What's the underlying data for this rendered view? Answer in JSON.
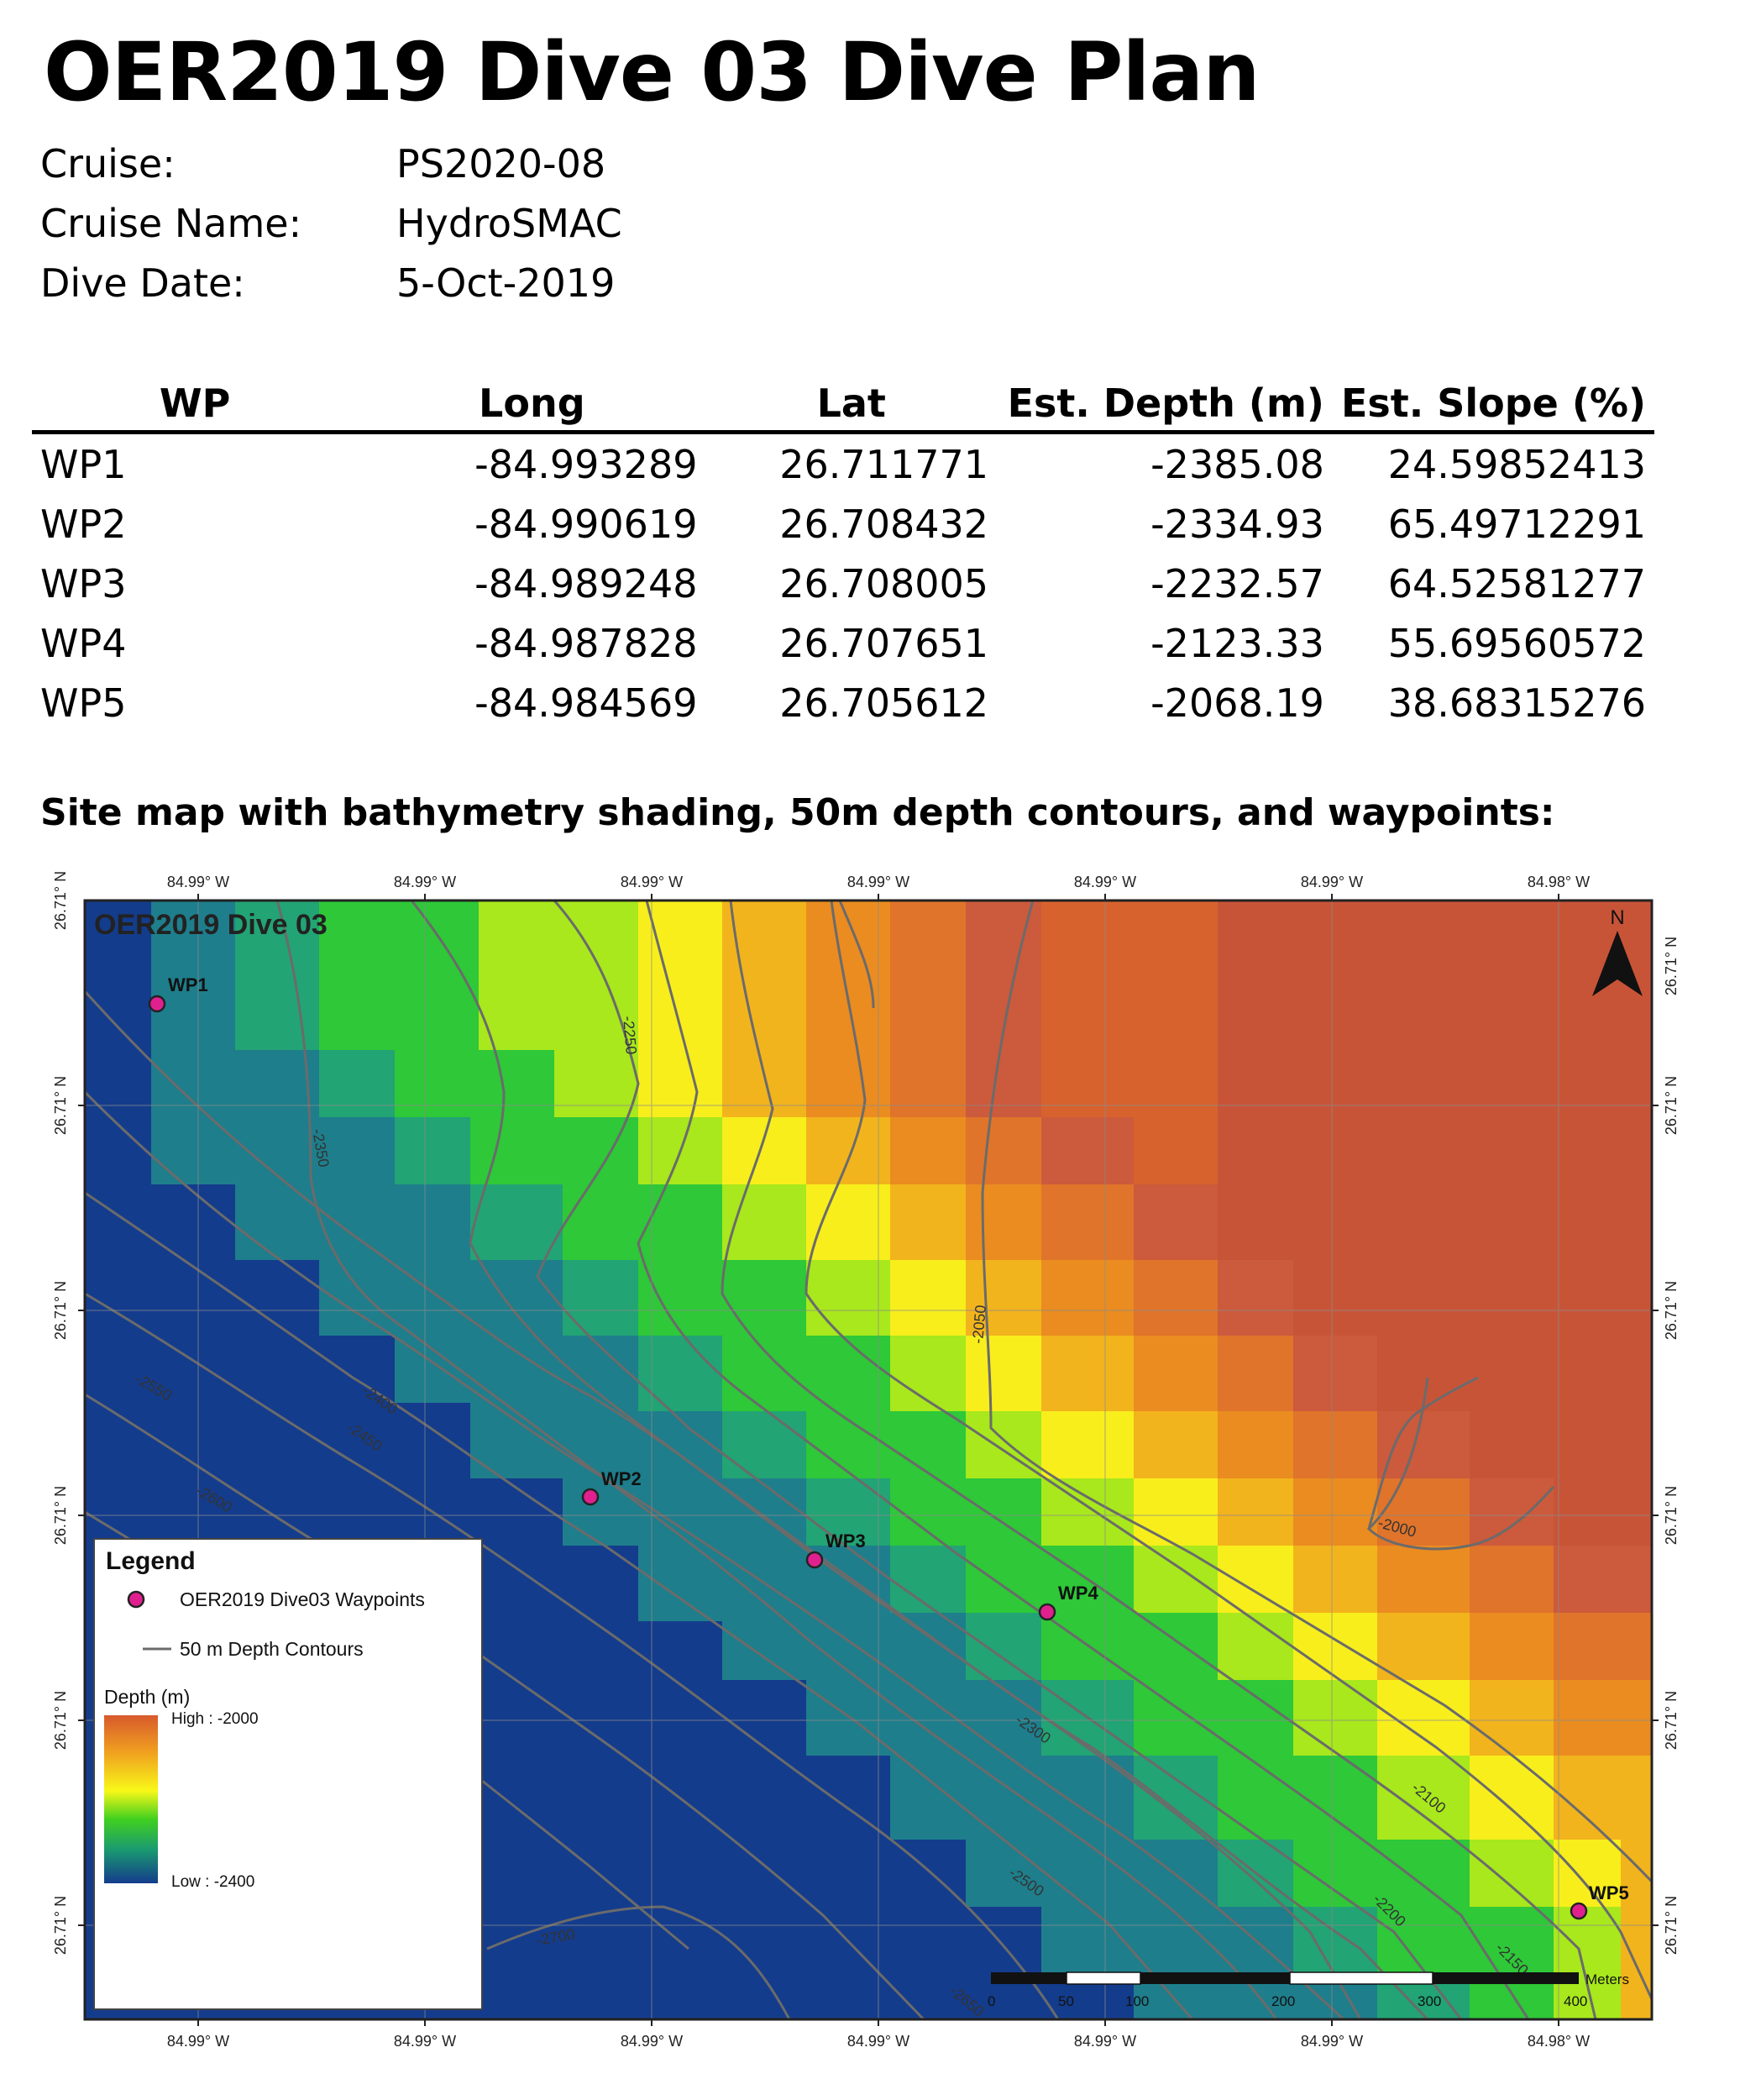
{
  "title": "OER2019 Dive 03 Dive Plan",
  "info": [
    {
      "key": "Cruise:",
      "value": "PS2020-08"
    },
    {
      "key": "Cruise Name:",
      "value": "HydroSMAC"
    },
    {
      "key": "Dive Date:",
      "value": "5-Oct-2019"
    }
  ],
  "table": {
    "headers": [
      "WP",
      "Long",
      "Lat",
      "Est. Depth (m)",
      "Est. Slope (%)"
    ],
    "rows": [
      [
        "WP1",
        "-84.993289",
        "26.711771",
        "-2385.08",
        "24.59852413"
      ],
      [
        "WP2",
        "-84.990619",
        "26.708432",
        "-2334.93",
        "65.49712291"
      ],
      [
        "WP3",
        "-84.989248",
        "26.708005",
        "-2232.57",
        "64.52581277"
      ],
      [
        "WP4",
        "-84.987828",
        "26.707651",
        "-2123.33",
        "55.69560572"
      ],
      [
        "WP5",
        "-84.984569",
        "26.705612",
        "-2068.19",
        "38.68315276"
      ]
    ]
  },
  "map_heading": "Site map with bathymetry shading, 50m depth contours, and waypoints:",
  "map": {
    "map_title": "OER2019 Dive 03",
    "north_label": "N",
    "top_ticks": [
      "84.99° W",
      "84.99° W",
      "84.99° W",
      "84.99° W",
      "84.99° W",
      "84.99° W",
      "84.98° W"
    ],
    "bottom_ticks": [
      "84.99° W",
      "84.99° W",
      "84.99° W",
      "84.99° W",
      "84.99° W",
      "84.99° W",
      "84.98° W"
    ],
    "left_ticks": [
      "26.71° N",
      "26.71° N",
      "26.71° N",
      "26.71° N",
      "26.71° N",
      "26.71° N"
    ],
    "right_ticks": [
      "26.71° N",
      "26.71° N",
      "26.71° N",
      "26.71° N",
      "26.71° N",
      "26.71° N"
    ],
    "waypoint_labels": [
      "WP1",
      "WP2",
      "WP3",
      "WP4",
      "WP5"
    ],
    "waypoint_color": "#e0208f",
    "contour_labels": [
      "-2350",
      "-2250",
      "-2050",
      "-2000",
      "-2550",
      "-2400",
      "-2450",
      "-2600",
      "-2300",
      "-2100",
      "-2500",
      "-2200",
      "-2150",
      "-2700",
      "-2650"
    ],
    "legend": {
      "title": "Legend",
      "waypoints": "OER2019 Dive03 Waypoints",
      "contours": "50 m Depth Contours",
      "depth_title": "Depth (m)",
      "high": "High : -2000",
      "low": "Low : -2400"
    },
    "scale": {
      "unit": "Meters",
      "labels": [
        "0",
        "50",
        "100",
        "200",
        "300",
        "400"
      ]
    }
  }
}
